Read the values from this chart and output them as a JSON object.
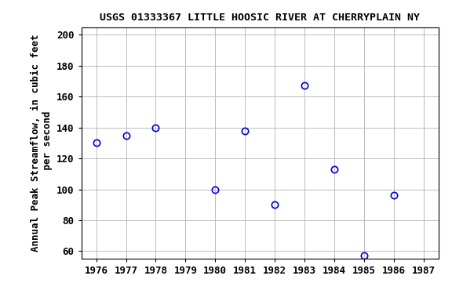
{
  "title": "USGS 01333367 LITTLE HOOSIC RIVER AT CHERRYPLAIN NY",
  "ylabel_line1": "Annual Peak Streamflow, in cubic feet",
  "ylabel_line2": " per second",
  "years": [
    1976,
    1977,
    1978,
    1980,
    1981,
    1982,
    1983,
    1984,
    1985,
    1986
  ],
  "values": [
    130,
    135,
    140,
    100,
    138,
    90,
    167,
    113,
    57,
    96
  ],
  "xlim": [
    1975.5,
    1987.5
  ],
  "ylim": [
    55,
    205
  ],
  "yticks": [
    60,
    80,
    100,
    120,
    140,
    160,
    180,
    200
  ],
  "xticks": [
    1976,
    1977,
    1978,
    1979,
    1980,
    1981,
    1982,
    1983,
    1984,
    1985,
    1986,
    1987
  ],
  "marker_color": "#0000cc",
  "marker_size": 6,
  "grid_color": "#bbbbbb",
  "bg_color": "#ffffff",
  "title_fontsize": 9.5,
  "label_fontsize": 9,
  "tick_fontsize": 9
}
